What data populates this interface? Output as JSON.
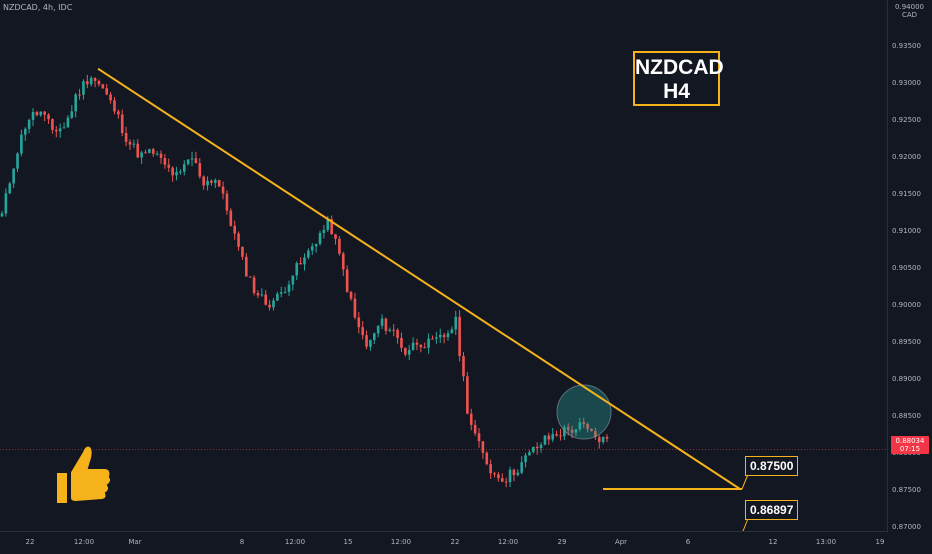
{
  "header": {
    "symbol_line": "NZDCAD, 4h, IDC",
    "currency": "0.94000\nCAD"
  },
  "title": {
    "line1": "NZDCAD",
    "line2": "H4"
  },
  "levels": {
    "target1": "0.87500",
    "target2": "0.86897"
  },
  "current_price": {
    "price": "0.88034",
    "countdown": "07:15"
  },
  "colors": {
    "up": "#26a69a",
    "down": "#ef5350",
    "trendline": "#f5b21b",
    "background": "#131722"
  },
  "icons": {
    "thumb": "thumbs-up-icon"
  },
  "chart_data": {
    "type": "candlestick",
    "title": "",
    "symbol": "NZDCAD",
    "timeframe": "4h",
    "y_ticks": [
      "0.93500",
      "0.93000",
      "0.92500",
      "0.92000",
      "0.91500",
      "0.91000",
      "0.90500",
      "0.90000",
      "0.89500",
      "0.89000",
      "0.88500",
      "0.88000",
      "0.87500",
      "0.87000"
    ],
    "x_ticks": [
      "22",
      "12:00",
      "Mar",
      "8",
      "12:00",
      "15",
      "12:00",
      "22",
      "12:00",
      "29",
      "Apr",
      "6",
      "12",
      "13:00",
      "19"
    ],
    "ylim": [
      0.8694,
      0.9405
    ],
    "trendline": {
      "from_price": 0.9318,
      "to_price": 0.875
    },
    "horizontal_levels": [
      0.875,
      0.86897
    ],
    "path_points": [
      0.912,
      0.9195,
      0.925,
      0.926,
      0.9235,
      0.924,
      0.9285,
      0.931,
      0.929,
      0.926,
      0.922,
      0.92,
      0.9205,
      0.9185,
      0.917,
      0.92,
      0.9165,
      0.917,
      0.912,
      0.906,
      0.902,
      0.9,
      0.901,
      0.904,
      0.906,
      0.909,
      0.911,
      0.905,
      0.898,
      0.894,
      0.8975,
      0.8965,
      0.8935,
      0.895,
      0.8945,
      0.8955,
      0.8975,
      0.885,
      0.88,
      0.877,
      0.8765,
      0.878,
      0.88,
      0.8815,
      0.8825,
      0.883,
      0.8835,
      0.882,
      0.8815
    ]
  }
}
